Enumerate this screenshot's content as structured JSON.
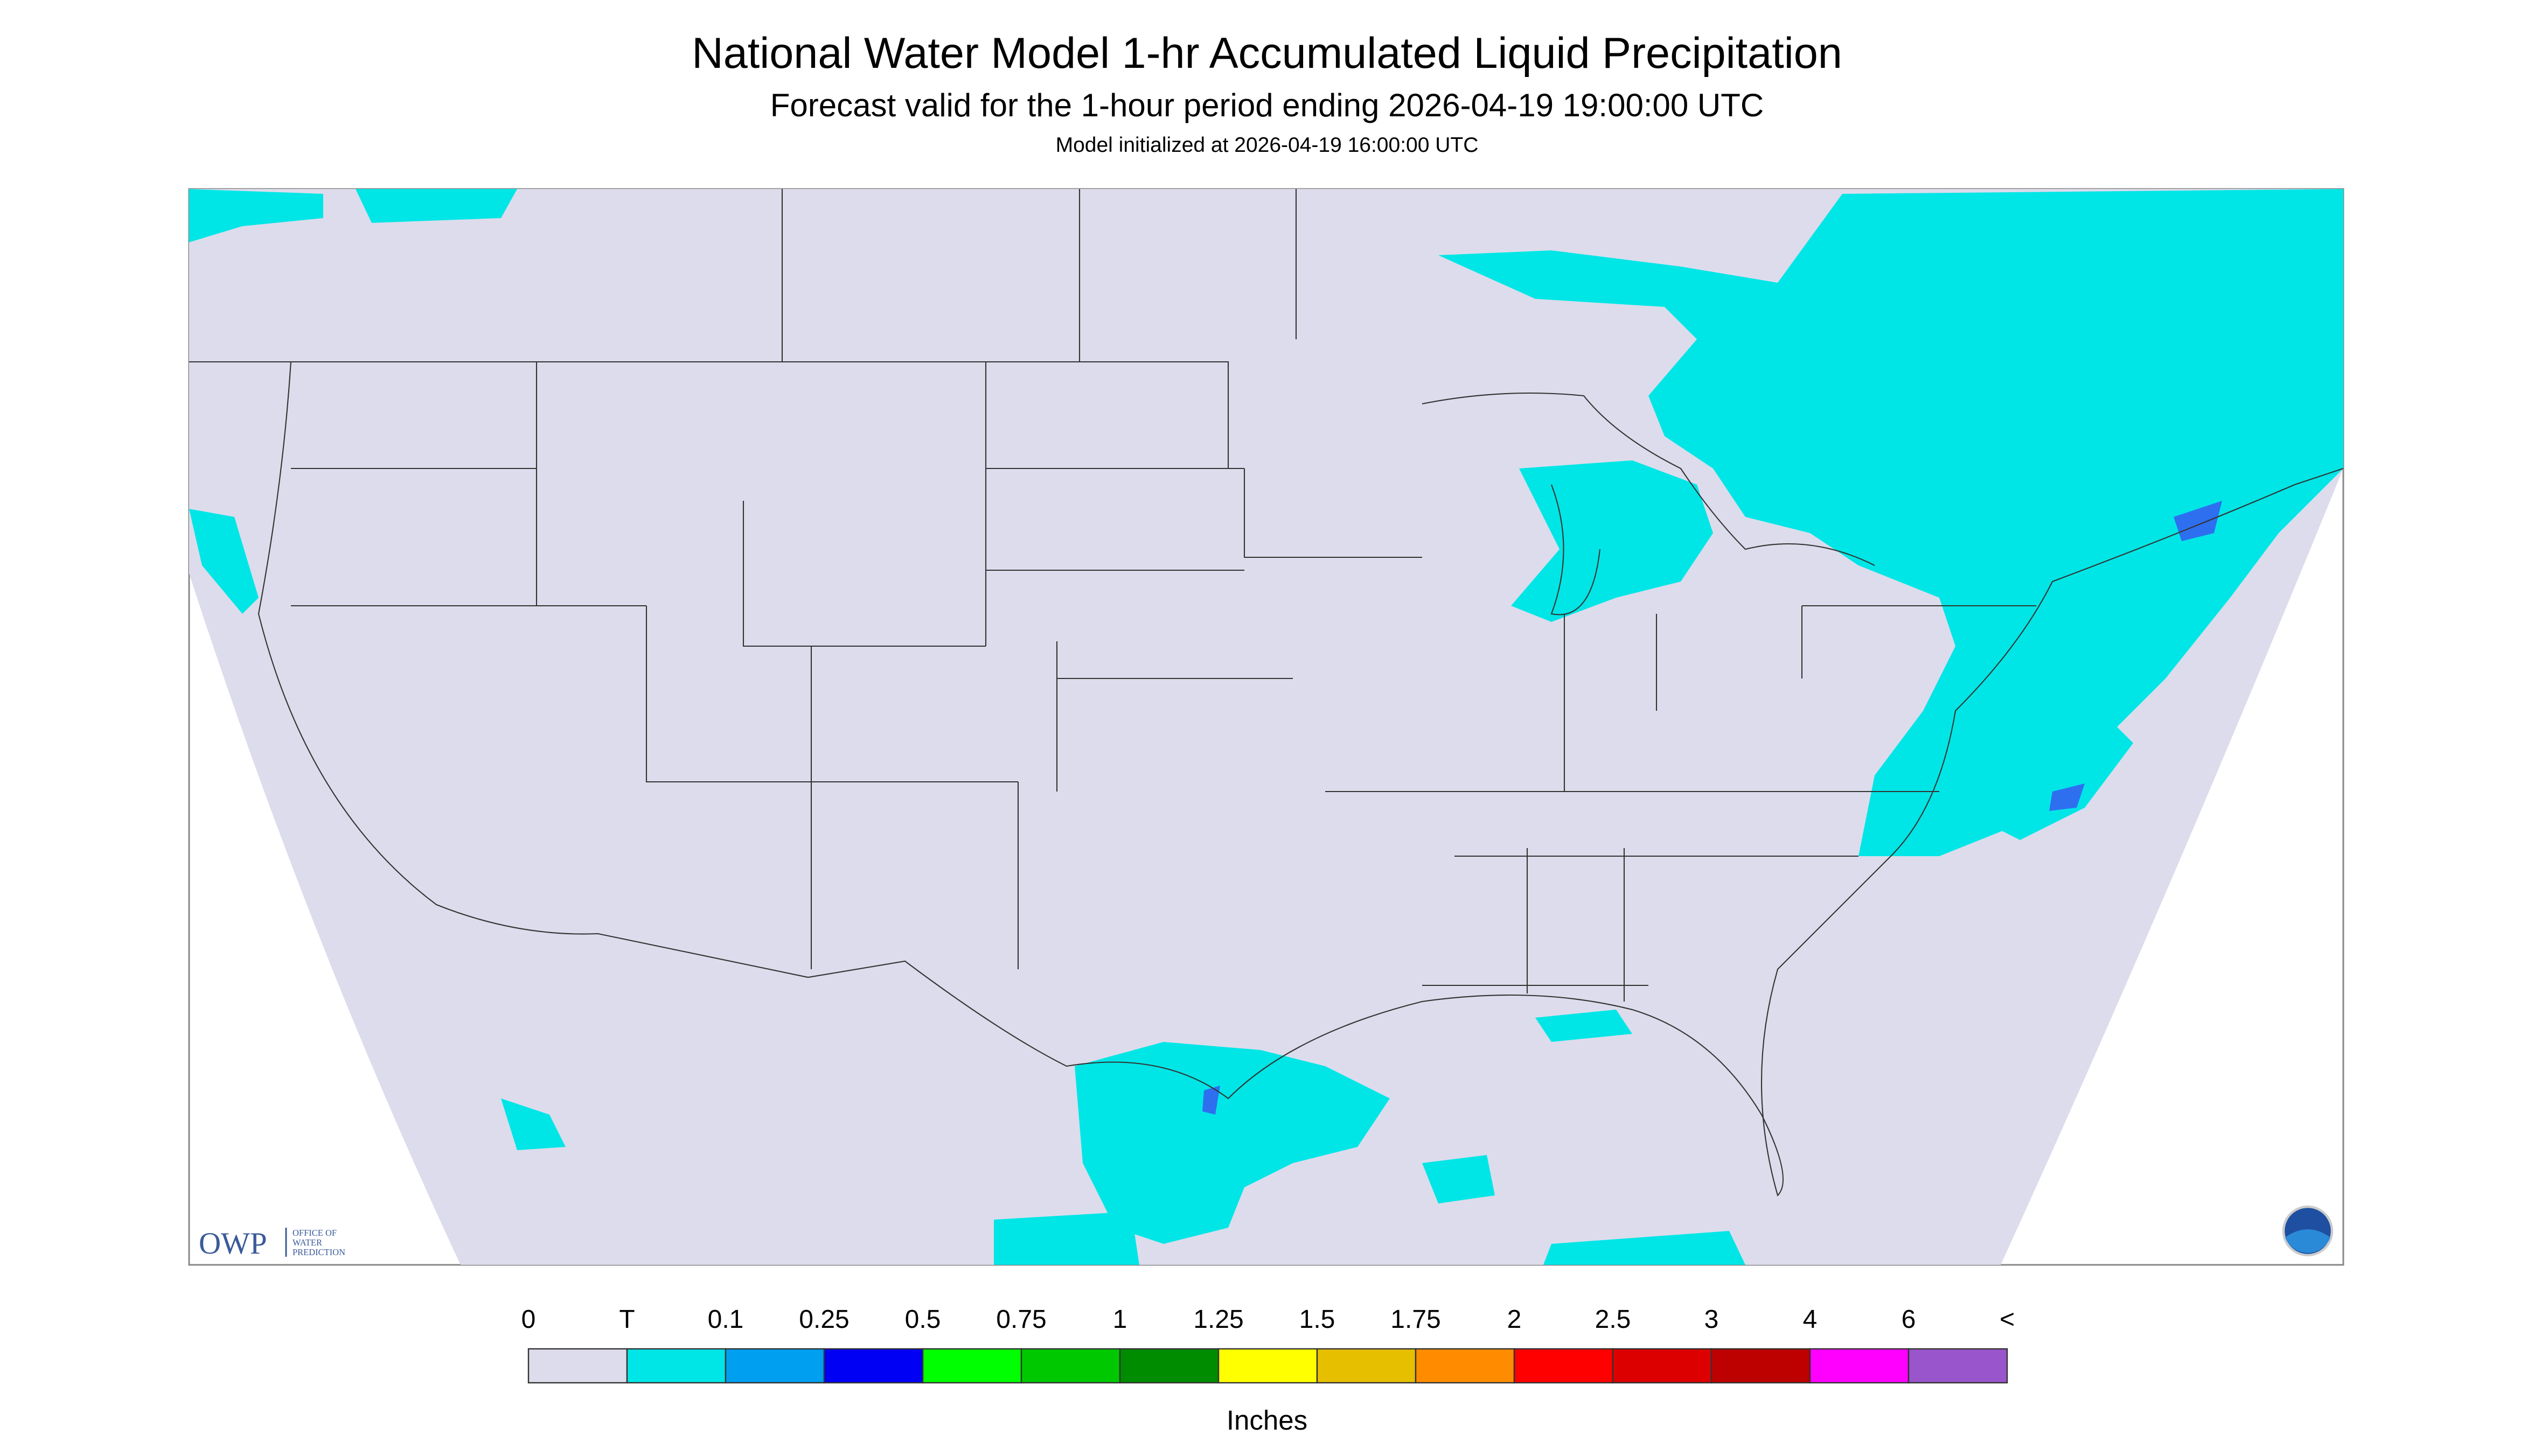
{
  "title": "National Water Model 1-hr Accumulated Liquid Precipitation",
  "subtitle": "Forecast valid for the 1-hour period ending 2026-04-19 19:00:00 UTC",
  "initialized": "Model initialized at 2026-04-19 16:00:00 UTC",
  "logo": {
    "text": "OWP",
    "subtext": [
      "OFFICE OF",
      "WATER",
      "PREDICTION"
    ]
  },
  "legend": {
    "labels": [
      "0",
      "T",
      "0.1",
      "0.25",
      "0.5",
      "0.75",
      "1",
      "1.25",
      "1.5",
      "1.75",
      "2",
      "2.5",
      "3",
      "4",
      "6",
      "<"
    ],
    "colors": [
      "#dcdcec",
      "#00e6e6",
      "#009ff0",
      "#0000f5",
      "#00ff00",
      "#00c800",
      "#008c00",
      "#ffff00",
      "#e6bf00",
      "#ff8c00",
      "#ff0000",
      "#dd0000",
      "#bd0000",
      "#ff00ff",
      "#9955cc"
    ],
    "unit": "Inches"
  }
}
